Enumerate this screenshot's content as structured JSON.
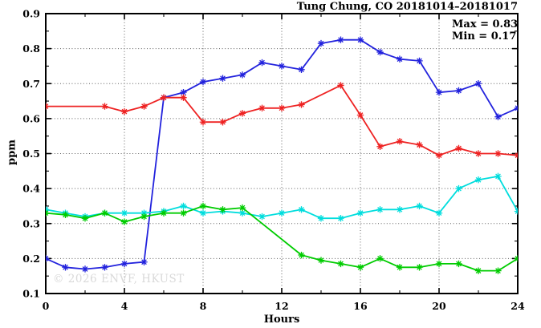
{
  "header": {
    "title": "Tung Chung, CO 20181014–20181017"
  },
  "stats": {
    "max_label": "Max = 0.83",
    "min_label": "Min = 0.17"
  },
  "watermark": "© 2026 ENVF, HKUST",
  "chart_data": {
    "type": "line",
    "title": "Tung Chung, CO 20181014–20181017",
    "xlabel": "Hours",
    "ylabel": "ppm",
    "xlim": [
      0,
      24
    ],
    "ylim": [
      0.1,
      0.9
    ],
    "x_major_ticks": [
      0,
      4,
      8,
      12,
      16,
      20,
      24
    ],
    "x_minor_tick_step": 2,
    "y_major_tick_step": 0.1,
    "y_minor_tick_step": 0.05,
    "grid": true,
    "legend_position": "none",
    "annotations": {
      "max": 0.83,
      "min": 0.17
    },
    "series": [
      {
        "name": "blue",
        "color": "#2222dd",
        "marker": "asterisk",
        "points": [
          [
            0,
            0.2
          ],
          [
            1,
            0.175
          ],
          [
            2,
            0.17
          ],
          [
            3,
            0.175
          ],
          [
            4,
            0.185
          ],
          [
            5,
            0.19
          ],
          [
            6,
            0.66
          ],
          [
            7,
            0.675
          ],
          [
            8,
            0.705
          ],
          [
            9,
            0.715
          ],
          [
            10,
            0.725
          ],
          [
            11,
            0.76
          ],
          [
            12,
            0.75
          ],
          [
            13,
            0.74
          ],
          [
            14,
            0.815
          ],
          [
            15,
            0.825
          ],
          [
            16,
            0.825
          ],
          [
            17,
            0.79
          ],
          [
            18,
            0.77
          ],
          [
            19,
            0.765
          ],
          [
            20,
            0.675
          ],
          [
            21,
            0.68
          ],
          [
            22,
            0.7
          ],
          [
            23,
            0.605
          ],
          [
            24,
            0.63
          ]
        ]
      },
      {
        "name": "red",
        "color": "#ee2222",
        "marker": "asterisk",
        "points": [
          [
            0,
            0.635
          ],
          [
            3,
            0.635
          ],
          [
            4,
            0.62
          ],
          [
            5,
            0.635
          ],
          [
            6,
            0.66
          ],
          [
            7,
            0.66
          ],
          [
            8,
            0.59
          ],
          [
            9,
            0.59
          ],
          [
            10,
            0.615
          ],
          [
            11,
            0.63
          ],
          [
            12,
            0.63
          ],
          [
            13,
            0.64
          ],
          [
            15,
            0.695
          ],
          [
            16,
            0.61
          ],
          [
            17,
            0.52
          ],
          [
            18,
            0.535
          ],
          [
            19,
            0.525
          ],
          [
            20,
            0.495
          ],
          [
            21,
            0.515
          ],
          [
            22,
            0.5
          ],
          [
            23,
            0.5
          ],
          [
            24,
            0.495
          ]
        ]
      },
      {
        "name": "cyan",
        "color": "#00dddd",
        "marker": "asterisk",
        "points": [
          [
            0,
            0.34
          ],
          [
            1,
            0.33
          ],
          [
            2,
            0.32
          ],
          [
            3,
            0.33
          ],
          [
            4,
            0.33
          ],
          [
            5,
            0.33
          ],
          [
            6,
            0.335
          ],
          [
            7,
            0.35
          ],
          [
            8,
            0.33
          ],
          [
            9,
            0.335
          ],
          [
            10,
            0.33
          ],
          [
            11,
            0.32
          ],
          [
            12,
            0.33
          ],
          [
            13,
            0.34
          ],
          [
            14,
            0.315
          ],
          [
            15,
            0.315
          ],
          [
            16,
            0.33
          ],
          [
            17,
            0.34
          ],
          [
            18,
            0.34
          ],
          [
            19,
            0.35
          ],
          [
            20,
            0.33
          ],
          [
            21,
            0.4
          ],
          [
            22,
            0.425
          ],
          [
            23,
            0.435
          ],
          [
            24,
            0.335
          ]
        ]
      },
      {
        "name": "green",
        "color": "#00cc00",
        "marker": "asterisk",
        "points": [
          [
            0,
            0.33
          ],
          [
            1,
            0.325
          ],
          [
            2,
            0.315
          ],
          [
            3,
            0.33
          ],
          [
            4,
            0.305
          ],
          [
            5,
            0.32
          ],
          [
            6,
            0.33
          ],
          [
            7,
            0.33
          ],
          [
            8,
            0.35
          ],
          [
            9,
            0.34
          ],
          [
            10,
            0.345
          ],
          [
            13,
            0.21
          ],
          [
            14,
            0.195
          ],
          [
            15,
            0.185
          ],
          [
            16,
            0.175
          ],
          [
            17,
            0.2
          ],
          [
            18,
            0.175
          ],
          [
            19,
            0.175
          ],
          [
            20,
            0.185
          ],
          [
            21,
            0.185
          ],
          [
            22,
            0.165
          ],
          [
            23,
            0.165
          ],
          [
            24,
            0.2
          ]
        ]
      }
    ]
  }
}
